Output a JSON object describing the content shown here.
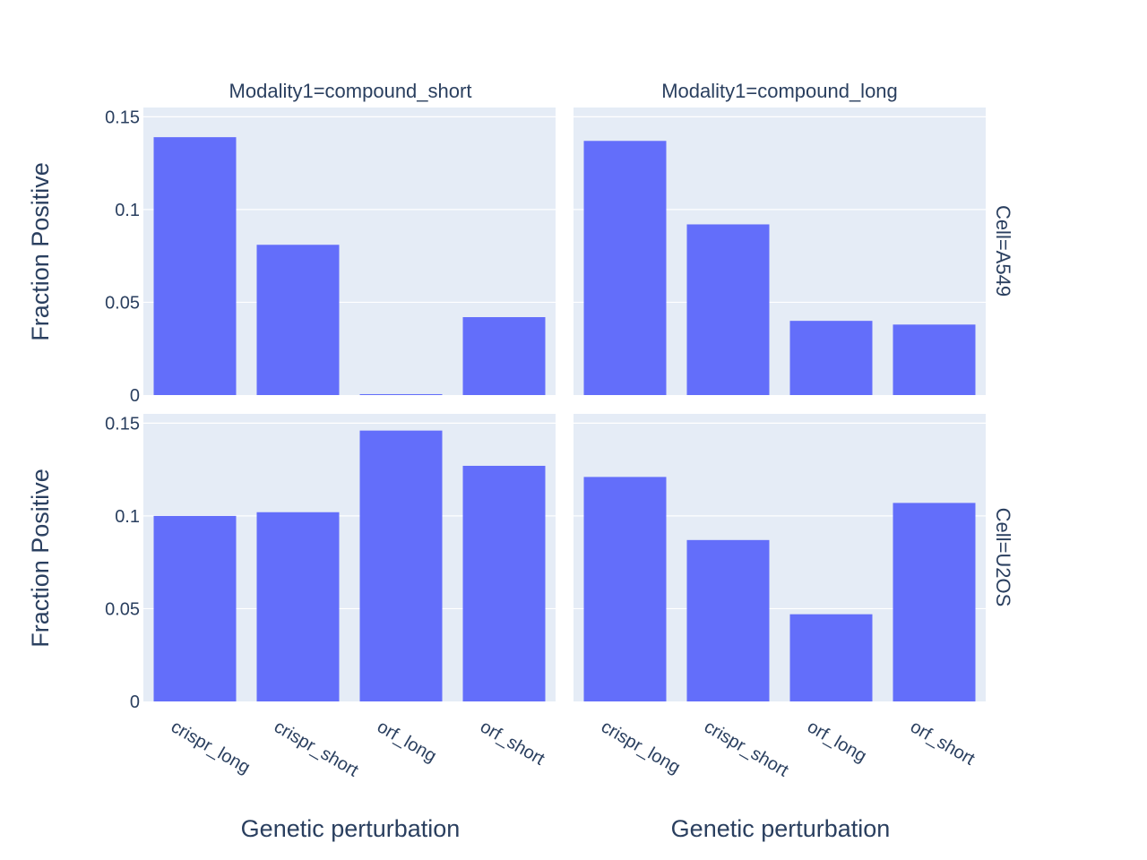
{
  "chart_data": {
    "type": "bar",
    "facet_col_labels": [
      "Modality1=compound_short",
      "Modality1=compound_long"
    ],
    "facet_row_labels": [
      "Cell=A549",
      "Cell=U2OS"
    ],
    "categories": [
      "crispr_long",
      "crispr_short",
      "orf_long",
      "orf_short"
    ],
    "xlabel": "Genetic perturbation",
    "ylabel": "Fraction Positive",
    "ylim": [
      0,
      0.155
    ],
    "yticks": [
      0,
      0.05,
      0.1,
      0.15
    ],
    "ytick_labels": [
      "0",
      "0.05",
      "0.1",
      "0.15"
    ],
    "grid": true,
    "bar_color": "#636efa",
    "plot_bg": "#e5ecf6",
    "panels": [
      {
        "row": 0,
        "col": 0,
        "values": [
          0.139,
          0.081,
          0.0005,
          0.042
        ]
      },
      {
        "row": 0,
        "col": 1,
        "values": [
          0.137,
          0.092,
          0.04,
          0.038
        ]
      },
      {
        "row": 1,
        "col": 0,
        "values": [
          0.1,
          0.102,
          0.146,
          0.127
        ]
      },
      {
        "row": 1,
        "col": 1,
        "values": [
          0.121,
          0.087,
          0.047,
          0.107
        ]
      }
    ]
  }
}
